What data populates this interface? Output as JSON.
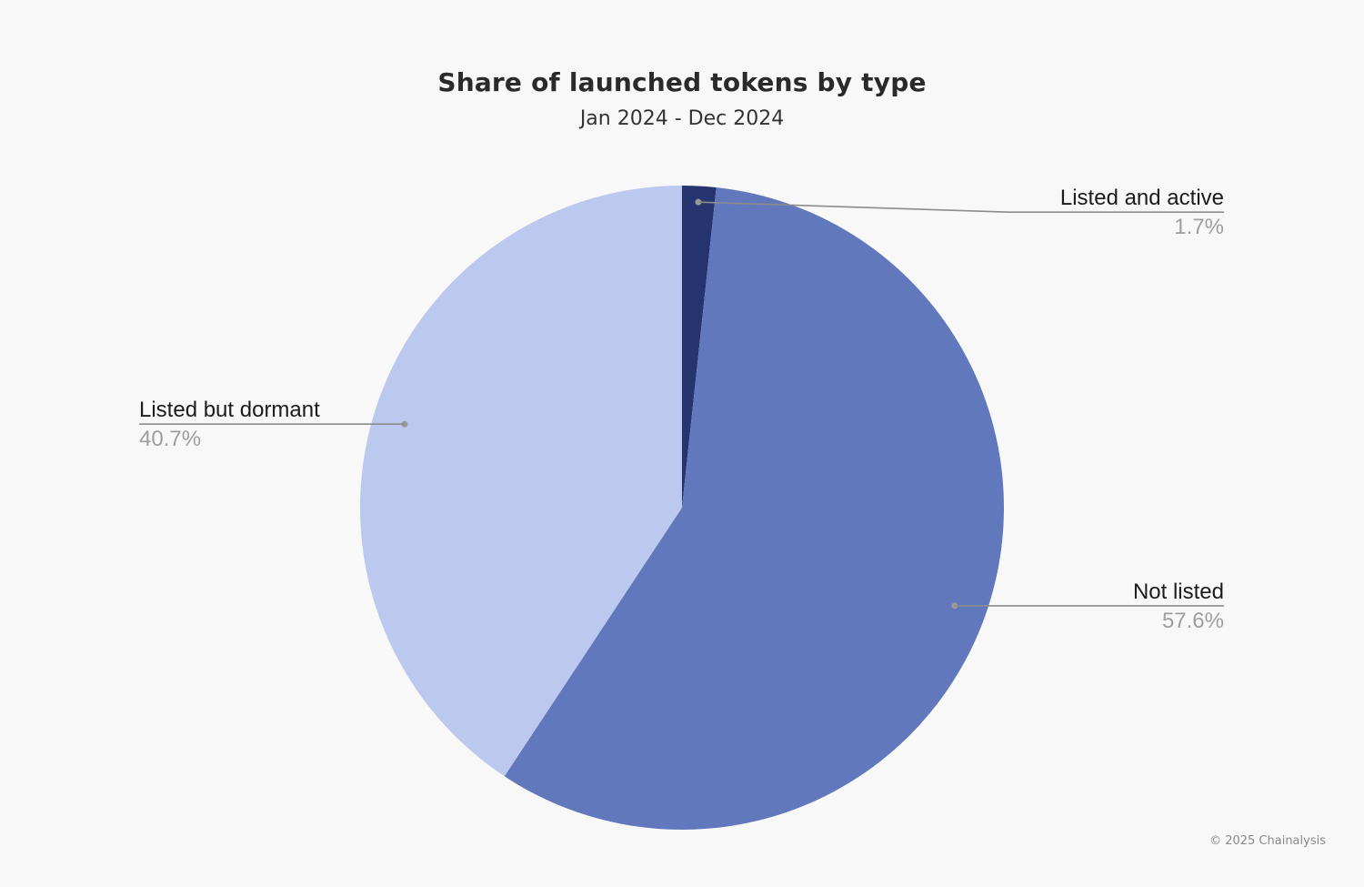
{
  "header": {
    "title": "Share of launched tokens by type",
    "subtitle": "Jan 2024 - Dec 2024"
  },
  "footer": {
    "copyright": "© 2025 Chainalysis"
  },
  "chart_data": {
    "type": "pie",
    "title": "Share of launched tokens by type",
    "subtitle": "Jan 2024 - Dec 2024",
    "slices": [
      {
        "label": "Listed and active",
        "value": 1.7,
        "value_label": "1.7%",
        "color": "#26356f",
        "label_side": "right"
      },
      {
        "label": "Not listed",
        "value": 57.6,
        "value_label": "57.6%",
        "color": "#6278bc",
        "label_side": "right"
      },
      {
        "label": "Listed but dormant",
        "value": 40.7,
        "value_label": "40.7%",
        "color": "#bcc9ee",
        "label_side": "left"
      }
    ],
    "start_angle": "12 o'clock",
    "direction": "clockwise",
    "legend": "none"
  }
}
